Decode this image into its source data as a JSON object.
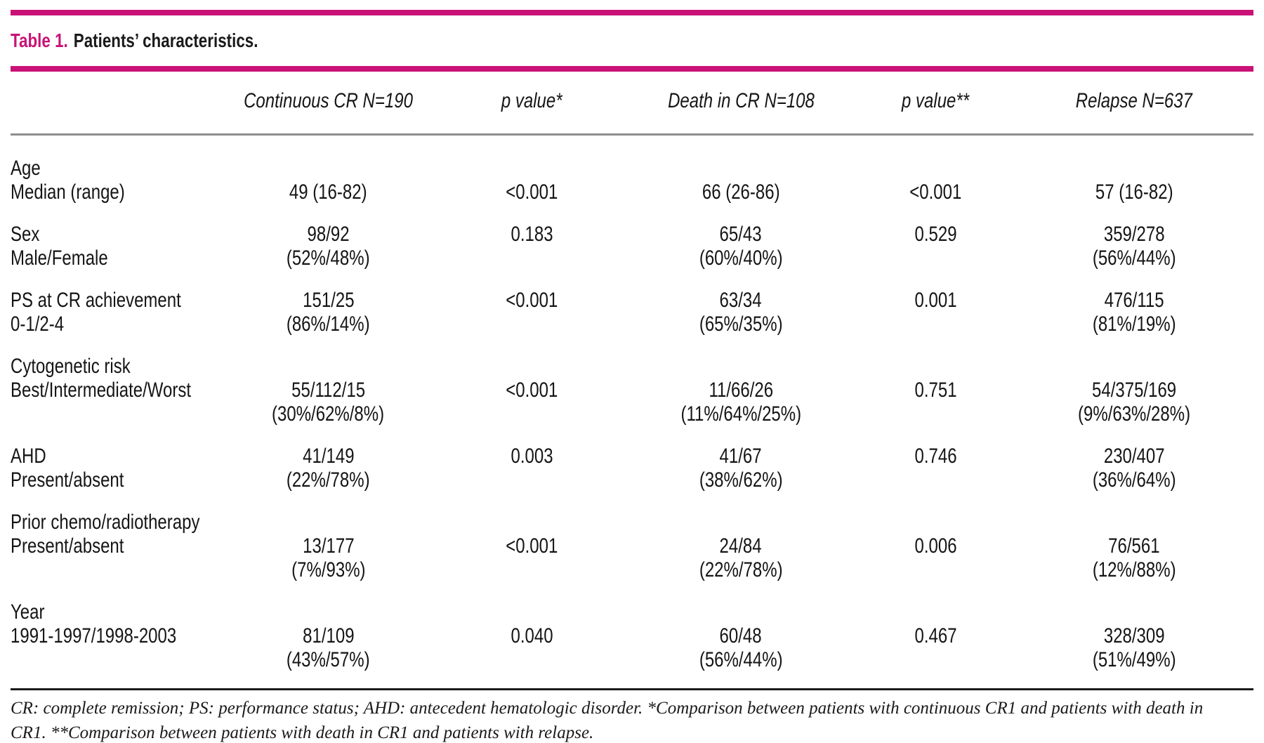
{
  "page": {
    "accent_magenta": "#c81277",
    "rule_gray": "#8d8d8d",
    "rule_dark": "#1c1c1c",
    "text_color": "#151515"
  },
  "title": {
    "prefix": "Table 1.",
    "text": "Patients’ characteristics."
  },
  "header": {
    "columns": [
      "Continuous CR N=190",
      "p value*",
      "Death in CR N=108",
      "p value**",
      "Relapse N=637"
    ]
  },
  "rows": [
    {
      "name": "age",
      "lines": [
        {
          "label": "Age",
          "cells": [
            "",
            "",
            "",
            "",
            ""
          ]
        },
        {
          "label": "Median (range)",
          "cells": [
            "49 (16-82)",
            "<0.001",
            "66 (26-86)",
            "<0.001",
            "57 (16-82)"
          ]
        }
      ]
    },
    {
      "name": "sex",
      "lines": [
        {
          "label": "Sex",
          "cells": [
            "98/92",
            "0.183",
            "65/43",
            "0.529",
            "359/278"
          ]
        },
        {
          "label": "Male/Female",
          "cells": [
            "(52%/48%)",
            "",
            "(60%/40%)",
            "",
            "(56%/44%)"
          ]
        }
      ]
    },
    {
      "name": "ps-at-cr-achievement",
      "lines": [
        {
          "label": "PS at CR achievement",
          "cells": [
            "151/25",
            "<0.001",
            "63/34",
            "0.001",
            "476/115"
          ]
        },
        {
          "label": "0-1/2-4",
          "cells": [
            "(86%/14%)",
            "",
            "(65%/35%)",
            "",
            "(81%/19%)"
          ]
        }
      ]
    },
    {
      "name": "cytogenetic-risk",
      "lines": [
        {
          "label": "Cytogenetic risk",
          "cells": [
            "",
            "",
            "",
            "",
            ""
          ]
        },
        {
          "label": "Best/Intermediate/Worst",
          "cells": [
            "55/112/15",
            "<0.001",
            "11/66/26",
            "0.751",
            "54/375/169"
          ]
        },
        {
          "label": "",
          "cells": [
            "(30%/62%/8%)",
            "",
            "(11%/64%/25%)",
            "",
            "(9%/63%/28%)"
          ]
        }
      ]
    },
    {
      "name": "ahd",
      "lines": [
        {
          "label": "AHD",
          "cells": [
            "41/149",
            "0.003",
            "41/67",
            "0.746",
            "230/407"
          ]
        },
        {
          "label": "Present/absent",
          "cells": [
            "(22%/78%)",
            "",
            "(38%/62%)",
            "",
            "(36%/64%)"
          ]
        }
      ]
    },
    {
      "name": "prior-chemo-radiotherapy",
      "lines": [
        {
          "label": "Prior chemo/radiotherapy",
          "cells": [
            "",
            "",
            "",
            "",
            ""
          ]
        },
        {
          "label": "Present/absent",
          "cells": [
            "13/177",
            "<0.001",
            "24/84",
            "0.006",
            "76/561"
          ]
        },
        {
          "label": "",
          "cells": [
            "(7%/93%)",
            "",
            "(22%/78%)",
            "",
            "(12%/88%)"
          ]
        }
      ]
    },
    {
      "name": "year",
      "lines": [
        {
          "label": "Year",
          "cells": [
            "",
            "",
            "",
            "",
            ""
          ]
        },
        {
          "label": "1991-1997/1998-2003",
          "cells": [
            "81/109",
            "0.040",
            "60/48",
            "0.467",
            "328/309"
          ]
        },
        {
          "label": "",
          "cells": [
            "(43%/57%)",
            "",
            "(56%/44%)",
            "",
            "(51%/49%)"
          ]
        }
      ]
    }
  ],
  "footnote": {
    "lines": [
      "CR: complete remission; PS: performance status; AHD: antecedent hematologic disorder. *Comparison between patients with continuous CR1 and patients with death in",
      "CR1.  **Comparison between patients with death in CR1 and patients with relapse."
    ]
  }
}
